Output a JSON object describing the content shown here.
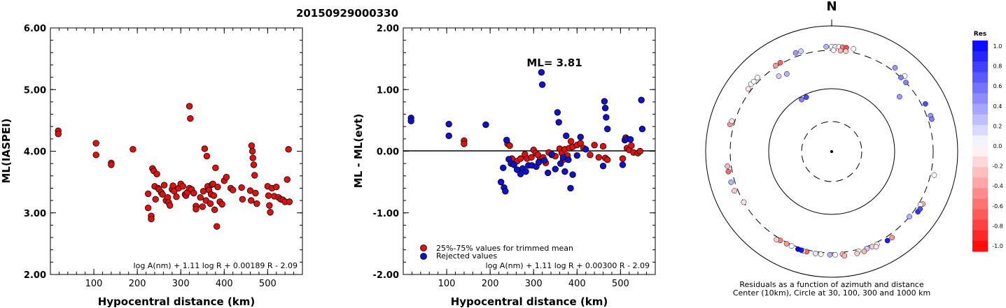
{
  "figure": {
    "title": "20150929000330",
    "north_label": "N"
  },
  "chart_data": [
    {
      "type": "scatter",
      "panel": "left",
      "ylabel": "ML(IASPEI)",
      "xlabel": "Hypocentral distance (km)",
      "xlim": [
        0,
        580
      ],
      "ylim": [
        2.0,
        6.0
      ],
      "x_ticks": [
        "100",
        "200",
        "300",
        "400",
        "500"
      ],
      "y_ticks": [
        "2.00",
        "3.00",
        "4.00",
        "5.00",
        "6.00"
      ],
      "formula": "log A(nm) + 1.11 log R + 0.00189 R - 2.09",
      "marker_color": "#e01010",
      "points": [
        [
          18,
          4.33
        ],
        [
          18,
          4.28
        ],
        [
          105,
          4.13
        ],
        [
          105,
          3.94
        ],
        [
          140,
          3.81
        ],
        [
          140,
          3.78
        ],
        [
          190,
          4.03
        ],
        [
          225,
          3.31
        ],
        [
          225,
          3.08
        ],
        [
          232,
          2.95
        ],
        [
          232,
          2.9
        ],
        [
          235,
          3.72
        ],
        [
          238,
          3.68
        ],
        [
          240,
          3.43
        ],
        [
          242,
          3.22
        ],
        [
          245,
          3.63
        ],
        [
          248,
          3.4
        ],
        [
          250,
          3.38
        ],
        [
          255,
          3.33
        ],
        [
          258,
          3.3
        ],
        [
          262,
          3.45
        ],
        [
          266,
          3.2
        ],
        [
          270,
          3.25
        ],
        [
          272,
          3.17
        ],
        [
          275,
          3.12
        ],
        [
          280,
          3.38
        ],
        [
          282,
          3.44
        ],
        [
          285,
          3.35
        ],
        [
          290,
          3.26
        ],
        [
          295,
          3.4
        ],
        [
          300,
          3.47
        ],
        [
          305,
          3.43
        ],
        [
          310,
          3.3
        ],
        [
          312,
          3.28
        ],
        [
          315,
          3.33
        ],
        [
          320,
          3.4
        ],
        [
          320,
          4.73
        ],
        [
          322,
          4.53
        ],
        [
          325,
          3.38
        ],
        [
          330,
          3.32
        ],
        [
          335,
          3.11
        ],
        [
          335,
          3.06
        ],
        [
          345,
          3.25
        ],
        [
          350,
          3.1
        ],
        [
          352,
          3.35
        ],
        [
          355,
          4.04
        ],
        [
          358,
          3.2
        ],
        [
          360,
          3.92
        ],
        [
          362,
          3.43
        ],
        [
          365,
          3.37
        ],
        [
          368,
          3.15
        ],
        [
          370,
          3.3
        ],
        [
          372,
          3.46
        ],
        [
          374,
          3.47
        ],
        [
          376,
          3.28
        ],
        [
          378,
          3.05
        ],
        [
          380,
          3.73
        ],
        [
          383,
          2.78
        ],
        [
          385,
          3.42
        ],
        [
          390,
          3.18
        ],
        [
          395,
          3.14
        ],
        [
          400,
          3.52
        ],
        [
          405,
          3.58
        ],
        [
          415,
          3.4
        ],
        [
          420,
          3.37
        ],
        [
          440,
          3.41
        ],
        [
          442,
          3.22
        ],
        [
          460,
          3.36
        ],
        [
          462,
          3.2
        ],
        [
          463,
          4.09
        ],
        [
          465,
          4.0
        ],
        [
          466,
          3.89
        ],
        [
          468,
          3.78
        ],
        [
          470,
          3.61
        ],
        [
          472,
          3.32
        ],
        [
          475,
          3.15
        ],
        [
          500,
          3.43
        ],
        [
          502,
          3.28
        ],
        [
          504,
          3.12
        ],
        [
          506,
          3.01
        ],
        [
          510,
          3.4
        ],
        [
          515,
          3.27
        ],
        [
          520,
          3.42
        ],
        [
          525,
          3.25
        ],
        [
          530,
          3.22
        ],
        [
          535,
          3.21
        ],
        [
          540,
          3.18
        ],
        [
          545,
          3.54
        ],
        [
          548,
          4.03
        ],
        [
          550,
          3.18
        ]
      ]
    },
    {
      "type": "scatter",
      "panel": "middle",
      "ylabel": "ML - ML(evt)",
      "xlabel": "Hypocentral distance (km)",
      "xlim": [
        0,
        580
      ],
      "ylim": [
        -2.0,
        2.0
      ],
      "x_ticks": [
        "100",
        "200",
        "300",
        "400",
        "500"
      ],
      "y_ticks": [
        "-2.00",
        "-1.00",
        "0.00",
        "1.00",
        "2.00"
      ],
      "annotation": "ML= 3.81",
      "formula": "log A(nm) + 1.11 log R + 0.00300 R - 2.09",
      "legend": [
        {
          "label": "25%-75% values for trimmed mean",
          "color": "#e01010"
        },
        {
          "label": "Rejected values",
          "color": "#1010d0"
        }
      ],
      "series": [
        {
          "name": "25%-75% values for trimmed mean",
          "color": "#e01010",
          "points": [
            [
              140,
              0.17
            ],
            [
              140,
              0.12
            ],
            [
              240,
              0.12
            ],
            [
              245,
              0.09
            ],
            [
              250,
              -0.12
            ],
            [
              262,
              -0.16
            ],
            [
              270,
              -0.12
            ],
            [
              280,
              -0.05
            ],
            [
              285,
              -0.12
            ],
            [
              295,
              -0.1
            ],
            [
              300,
              0.02
            ],
            [
              305,
              -0.03
            ],
            [
              310,
              -0.06
            ],
            [
              315,
              -0.14
            ],
            [
              322,
              -0.1
            ],
            [
              328,
              -0.19
            ],
            [
              335,
              -0.02
            ],
            [
              342,
              -0.06
            ],
            [
              350,
              -0.08
            ],
            [
              360,
              0.04
            ],
            [
              365,
              -0.03
            ],
            [
              368,
              -0.14
            ],
            [
              372,
              0.03
            ],
            [
              378,
              -0.07
            ],
            [
              382,
              0.05
            ],
            [
              386,
              0.16
            ],
            [
              390,
              0.07
            ],
            [
              400,
              0.1
            ],
            [
              408,
              0.13
            ],
            [
              415,
              0.05
            ],
            [
              430,
              -0.06
            ],
            [
              440,
              0.1
            ],
            [
              450,
              -0.1
            ],
            [
              460,
              0.08
            ],
            [
              465,
              -0.11
            ],
            [
              470,
              -0.14
            ],
            [
              505,
              -0.12
            ],
            [
              512,
              0.22
            ],
            [
              515,
              0.05
            ],
            [
              520,
              0.02
            ],
            [
              525,
              0.09
            ],
            [
              530,
              -0.02
            ],
            [
              540,
              -0.03
            ],
            [
              545,
              0.0
            ]
          ]
        },
        {
          "name": "Rejected values",
          "color": "#1010d0",
          "points": [
            [
              18,
              0.54
            ],
            [
              18,
              0.49
            ],
            [
              105,
              0.44
            ],
            [
              105,
              0.25
            ],
            [
              190,
              0.43
            ],
            [
              225,
              -0.5
            ],
            [
              230,
              -0.27
            ],
            [
              232,
              -0.59
            ],
            [
              235,
              -0.65
            ],
            [
              238,
              0.18
            ],
            [
              243,
              -0.13
            ],
            [
              248,
              -0.2
            ],
            [
              255,
              -0.22
            ],
            [
              262,
              -0.3
            ],
            [
              270,
              -0.37
            ],
            [
              275,
              -0.28
            ],
            [
              282,
              -0.33
            ],
            [
              288,
              -0.23
            ],
            [
              296,
              -0.23
            ],
            [
              306,
              -0.25
            ],
            [
              312,
              -0.18
            ],
            [
              318,
              1.28
            ],
            [
              320,
              1.08
            ],
            [
              325,
              -0.15
            ],
            [
              333,
              -0.35
            ],
            [
              342,
              -0.05
            ],
            [
              350,
              -0.29
            ],
            [
              355,
              0.63
            ],
            [
              358,
              0.47
            ],
            [
              362,
              -0.2
            ],
            [
              368,
              -0.1
            ],
            [
              372,
              -0.33
            ],
            [
              375,
              0.25
            ],
            [
              380,
              -0.14
            ],
            [
              385,
              -0.6
            ],
            [
              390,
              -0.38
            ],
            [
              400,
              -0.07
            ],
            [
              408,
              0.23
            ],
            [
              420,
              0.03
            ],
            [
              460,
              -0.24
            ],
            [
              463,
              0.81
            ],
            [
              465,
              0.7
            ],
            [
              467,
              0.55
            ],
            [
              470,
              0.36
            ],
            [
              505,
              -0.22
            ],
            [
              510,
              0.18
            ],
            [
              515,
              0.2
            ],
            [
              523,
              0.19
            ],
            [
              548,
              0.83
            ],
            [
              550,
              0.36
            ]
          ]
        }
      ]
    },
    {
      "type": "polar",
      "panel": "right",
      "caption_line1": "Residuals as a function of azimuth and distance",
      "caption_line2": "Center (10km), Circle at 30, 100, 300 and 1000 km",
      "colorbar_title": "Res",
      "colorbar_ticks": [
        "1.0",
        "0.8",
        "0.6",
        "0.4",
        "0.2",
        "0.0",
        "-0.2",
        "-0.4",
        "-0.6",
        "-0.8",
        "-1.0"
      ],
      "rings_km": [
        30,
        100,
        300,
        1000
      ],
      "points_az_dist_res": [
        [
          330,
          90,
          0.5
        ],
        [
          335,
          90,
          0.7
        ],
        [
          357,
          360,
          0.3
        ],
        [
          0,
          360,
          0.0
        ],
        [
          2,
          360,
          0.1
        ],
        [
          4,
          360,
          0.0
        ],
        [
          6,
          360,
          -0.5
        ],
        [
          8,
          360,
          -0.7
        ],
        [
          12,
          360,
          0.0
        ],
        [
          1,
          300,
          0.0
        ],
        [
          5,
          300,
          -0.3
        ],
        [
          8,
          300,
          -0.2
        ],
        [
          340,
          360,
          0.4
        ],
        [
          343,
          360,
          0.2
        ],
        [
          330,
          320,
          -0.6
        ],
        [
          327,
          320,
          -0.4
        ],
        [
          310,
          360,
          0.0
        ],
        [
          312,
          355,
          0.0
        ],
        [
          315,
          355,
          0.0
        ],
        [
          307,
          345,
          -0.1
        ],
        [
          325,
          230,
          0.2
        ],
        [
          330,
          215,
          0.3
        ],
        [
          37,
          360,
          0.4
        ],
        [
          44,
          360,
          0.0
        ],
        [
          43,
          300,
          0.5
        ],
        [
          47,
          300,
          0.5
        ],
        [
          51,
          200,
          0.4
        ],
        [
          63,
          360,
          0.7
        ],
        [
          70,
          360,
          0.4
        ],
        [
          72,
          360,
          0.5
        ],
        [
          285,
          360,
          -0.4
        ],
        [
          287,
          345,
          -0.1
        ],
        [
          259,
          360,
          -0.6
        ],
        [
          262,
          360,
          -0.3
        ],
        [
          253,
          360,
          0.3
        ],
        [
          248,
          355,
          -0.2
        ],
        [
          240,
          300,
          -0.1
        ],
        [
          103,
          360,
          0.0
        ],
        [
          120,
          360,
          -0.3
        ],
        [
          121,
          330,
          0.0
        ],
        [
          125,
          360,
          0.8
        ],
        [
          123,
          365,
          0.7
        ],
        [
          130,
          300,
          0.3
        ],
        [
          145,
          360,
          -0.4
        ],
        [
          148,
          360,
          0.9
        ],
        [
          154,
          330,
          0.0
        ],
        [
          157,
          330,
          -0.2
        ],
        [
          160,
          330,
          0.2
        ],
        [
          165,
          330,
          0.0
        ],
        [
          174,
          330,
          -0.3
        ],
        [
          178,
          330,
          0.0
        ],
        [
          181,
          330,
          0.3
        ],
        [
          186,
          330,
          0.0
        ],
        [
          189,
          330,
          0.1
        ],
        [
          194,
          330,
          -0.6
        ],
        [
          196,
          330,
          0.0
        ],
        [
          197,
          330,
          0.9
        ],
        [
          199,
          330,
          1.0
        ],
        [
          203,
          320,
          0.0
        ],
        [
          206,
          320,
          -0.4
        ],
        [
          210,
          320,
          -0.5
        ],
        [
          212,
          340,
          -0.2
        ],
        [
          173,
          360,
          -0.3
        ],
        [
          166,
          360,
          -0.2
        ],
        [
          162,
          360,
          -0.3
        ],
        [
          155,
          360,
          -0.1
        ]
      ]
    }
  ]
}
